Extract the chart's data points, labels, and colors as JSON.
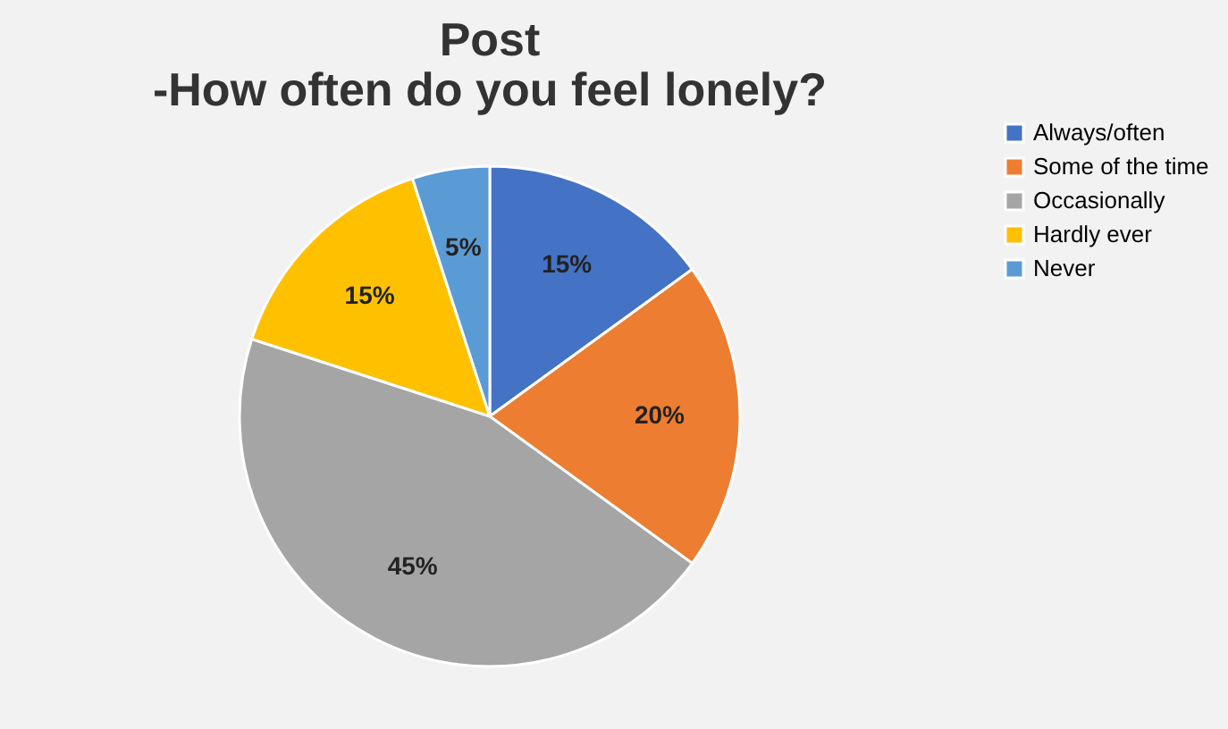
{
  "chart_data": {
    "type": "pie",
    "title": [
      "Post",
      "-How often do you feel lonely?"
    ],
    "categories": [
      "Always/often",
      "Some of the time",
      "Occasionally",
      "Hardly ever",
      "Never"
    ],
    "values": [
      15,
      20,
      45,
      15,
      5
    ],
    "colors": [
      "#4472c4",
      "#ed7d31",
      "#a5a5a5",
      "#ffc000",
      "#5b9bd5"
    ],
    "value_labels": [
      "15%",
      "20%",
      "45%",
      "15%",
      "5%"
    ],
    "legend": "right"
  }
}
